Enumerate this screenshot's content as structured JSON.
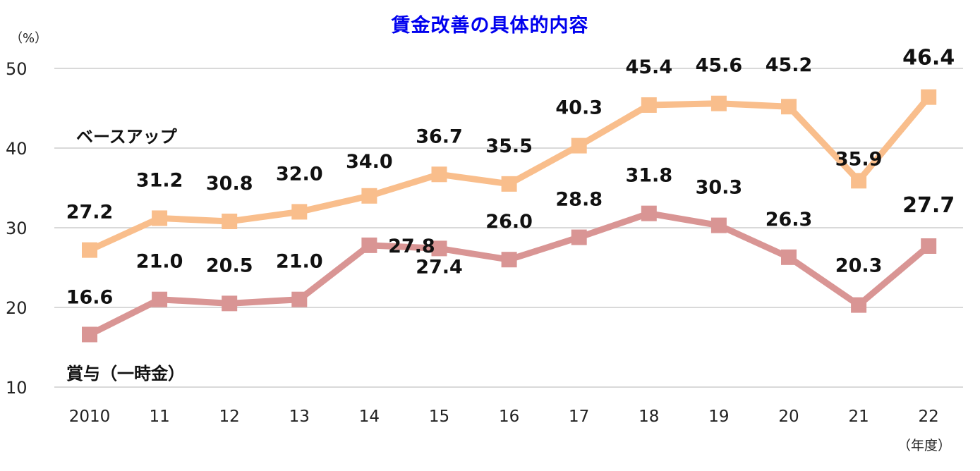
{
  "title": "賃金改善の具体的内容",
  "y_unit": "（%）",
  "x_unit": "（年度）",
  "chart_data": {
    "type": "line",
    "title": "賃金改善の具体的内容",
    "xlabel": "（年度）",
    "ylabel": "（%）",
    "categories": [
      "2010",
      "11",
      "12",
      "13",
      "14",
      "15",
      "16",
      "17",
      "18",
      "19",
      "20",
      "21",
      "22"
    ],
    "ylim": [
      10,
      50
    ],
    "yticks": [
      10,
      20,
      30,
      40,
      50
    ],
    "grid": true,
    "legend": "inline labels",
    "series": [
      {
        "name": "ベースアップ",
        "color": "#f9be8c",
        "values": [
          27.2,
          31.2,
          30.8,
          32.0,
          34.0,
          36.7,
          35.5,
          40.3,
          45.4,
          45.6,
          45.2,
          35.9,
          46.4
        ]
      },
      {
        "name": "賞与（一時金）",
        "color": "#d99594",
        "values": [
          16.6,
          21.0,
          20.5,
          21.0,
          27.8,
          27.4,
          26.0,
          28.8,
          31.8,
          30.3,
          26.3,
          20.3,
          27.7
        ]
      }
    ]
  },
  "colors": {
    "title": "#0000ee",
    "grid": "#d9d9d9",
    "text": "#111111"
  }
}
